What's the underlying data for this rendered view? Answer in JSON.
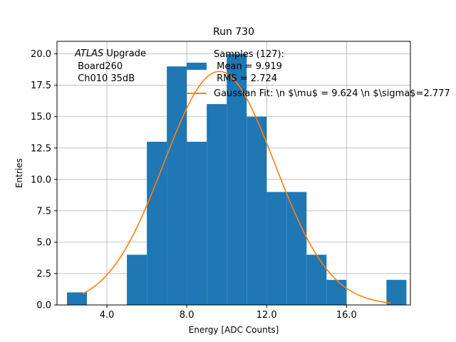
{
  "chart_data": {
    "type": "bar",
    "title": "Run 730",
    "xlabel": "Energy [ADC Counts]",
    "ylabel": "Entries",
    "xlim": [
      1.5,
      19.2
    ],
    "ylim": [
      0,
      21
    ],
    "grid": true,
    "xticks": [
      4.0,
      8.0,
      12.0,
      16.0
    ],
    "xtick_labels": [
      "4.0",
      "8.0",
      "12.0",
      "16.0"
    ],
    "yticks": [
      0,
      2.5,
      5,
      7.5,
      10,
      12.5,
      15,
      17.5,
      20
    ],
    "ytick_labels": [
      "0.0",
      "2.5",
      "5.0",
      "7.5",
      "10.0",
      "12.5",
      "15.0",
      "17.5",
      "20.0"
    ],
    "histogram": {
      "name": "Samples",
      "color": "#1f77b4",
      "bin_edges": [
        2,
        3,
        4,
        5,
        6,
        7,
        8,
        9,
        10,
        11,
        12,
        13,
        14,
        15,
        16,
        17,
        18,
        19
      ],
      "counts": [
        1,
        0,
        0,
        4,
        13,
        19,
        13,
        16,
        20,
        15,
        9,
        9,
        4,
        2,
        0,
        0,
        2
      ]
    },
    "fit": {
      "name": "Gaussian Fit",
      "color": "#ff7f0e",
      "mu": 9.624,
      "sigma": 2.777,
      "amplitude": 18.6,
      "x_range": [
        2.8,
        18.2
      ]
    },
    "legend": {
      "position": "top-right",
      "entries": [
        {
          "kind": "hist",
          "lines": [
            "Samples (127):",
            " Mean = 9.919",
            " RMS = 2.724"
          ]
        },
        {
          "kind": "line",
          "lines": [
            "Gaussian Fit: \\n $\\mu$ = 9.624 \\n $\\sigma$=2.777"
          ]
        }
      ]
    },
    "annotation": {
      "line1_italic": "ATLAS",
      "line1_rest": " Upgrade",
      "line2": " Board260",
      "line3": " Ch010 35dB"
    }
  }
}
